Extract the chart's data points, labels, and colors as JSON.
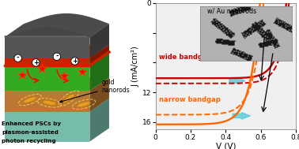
{
  "xlabel": "V (V)",
  "ylabel": "J (mA/cm²)",
  "xlim": [
    0.0,
    0.8
  ],
  "ylim": [
    -17,
    0
  ],
  "yticks": [
    0,
    -4,
    -8,
    -12,
    -16
  ],
  "ytick_labels": [
    "0",
    "",
    "",
    "12",
    "16"
  ],
  "xticks": [
    0.0,
    0.2,
    0.4,
    0.6,
    0.8
  ],
  "wide_color": "#cc0000",
  "narrow_color": "#ff6600",
  "bg_color": "#f0f0f0",
  "jsc_wide_ref": -10.1,
  "jsc_wide_nr": -10.8,
  "voc_wide_ref": 0.745,
  "voc_wide_nr": 0.76,
  "n_wide": 1.85,
  "jsc_narrow_ref": -16.3,
  "jsc_narrow_nr": -15.0,
  "voc_narrow_ref": 0.595,
  "voc_narrow_nr": 0.615,
  "n_narrow": 2.1,
  "label_wide": "wide bandgap",
  "label_narrow": "narrow bandgap",
  "annotation": "w/ Au nanorods",
  "cyan_color": "#50c8d8",
  "lw_solid": 1.7,
  "lw_dashed": 1.4,
  "left_text1": "Enhanced PSCs by",
  "left_text2": "plasmon-assisted",
  "left_text3": "photon recycling",
  "left_arrow_text": "gold\nnanorods",
  "layer_colors": {
    "top_dark": "#555555",
    "red_layer": "#cc2200",
    "green_layer": "#33aa22",
    "brown_layer": "#bb7733",
    "teal_layer": "#77bbaa"
  }
}
